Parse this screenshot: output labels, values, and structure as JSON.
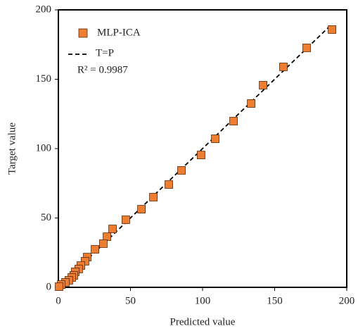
{
  "chart_data": {
    "type": "scatter",
    "x_label": "Predicted value",
    "y_label": "Target value",
    "xlim": [
      0,
      200
    ],
    "ylim": [
      0,
      200
    ],
    "xticks": [
      0,
      50,
      100,
      150,
      200
    ],
    "yticks": [
      0,
      50,
      100,
      150,
      200
    ],
    "series": [
      {
        "name": "MLP-ICA",
        "color": "#ED7D31",
        "x": [
          189.8,
          172.2,
          156.1,
          142,
          133.7,
          121.5,
          108.8,
          99,
          85.4,
          76.6,
          65.9,
          57.6,
          46.8,
          37.6,
          33.7,
          31.2,
          25.4,
          20,
          18.5,
          15.6,
          14.1,
          11.7,
          10.7,
          9.3,
          7.3,
          4.9,
          2,
          0.5
        ],
        "values": [
          185.8,
          172.6,
          158.9,
          145.7,
          132.5,
          119.8,
          107.1,
          95.4,
          84.3,
          74.1,
          65,
          56.3,
          48.7,
          42.1,
          36.5,
          31.5,
          27.4,
          21.8,
          18.8,
          15.7,
          13.2,
          11.2,
          8.6,
          7.1,
          5.1,
          3.6,
          2,
          0.5
        ]
      }
    ],
    "line": {
      "name": "T=P",
      "color": "#000000",
      "x": [
        0,
        190
      ],
      "values": [
        0,
        190
      ]
    },
    "annotation": "R² = 0.9987"
  }
}
